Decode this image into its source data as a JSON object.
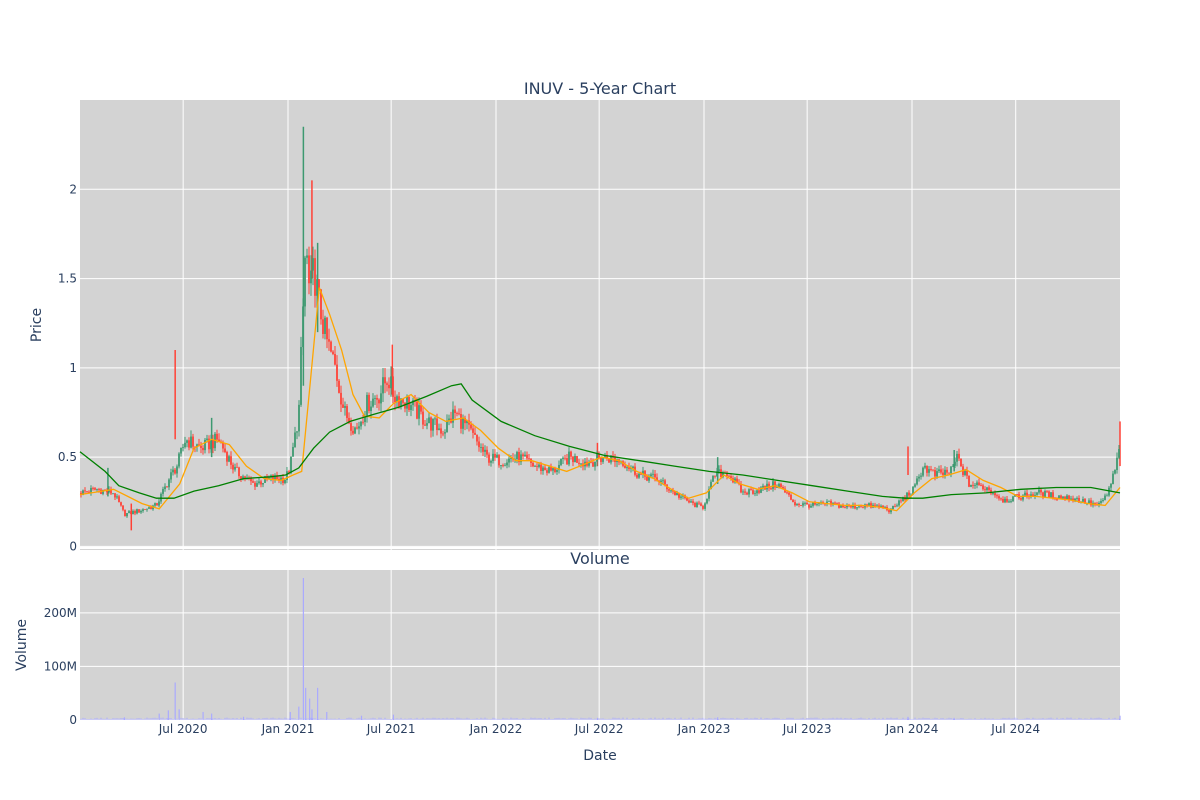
{
  "chart_data": [
    {
      "type": "candlestick",
      "title": "INUV - 5-Year Chart",
      "xlabel": "",
      "ylabel": "Price",
      "xlim": [
        "2020-01-02",
        "2024-12-31"
      ],
      "ylim": [
        -0.02,
        2.5
      ],
      "grid": true,
      "yticks": [
        0,
        0.5,
        1,
        1.5,
        2
      ],
      "ytick_labels": [
        "0",
        "0.5",
        "1",
        "1.5",
        "2"
      ],
      "xticks": [
        "2020-07-01",
        "2021-01-01",
        "2021-07-01",
        "2022-01-01",
        "2022-07-01",
        "2023-01-01",
        "2023-07-01",
        "2024-01-01",
        "2024-07-01"
      ],
      "increasing_color": "#3d9970",
      "decreasing_color": "#ff4136",
      "close_series": {
        "name": "",
        "x": [
          "2020-01-02",
          "2020-02-01",
          "2020-03-01",
          "2020-03-20",
          "2020-04-15",
          "2020-05-15",
          "2020-06-10",
          "2020-06-20",
          "2020-07-05",
          "2020-08-01",
          "2020-09-01",
          "2020-10-01",
          "2020-11-01",
          "2020-12-01",
          "2020-12-28",
          "2021-01-05",
          "2021-01-20",
          "2021-02-01",
          "2021-02-08",
          "2021-02-15",
          "2021-02-25",
          "2021-03-10",
          "2021-03-25",
          "2021-04-10",
          "2021-05-01",
          "2021-05-20",
          "2021-06-10",
          "2021-06-25",
          "2021-07-05",
          "2021-08-01",
          "2021-09-01",
          "2021-10-01",
          "2021-10-20",
          "2021-11-15",
          "2021-12-15",
          "2022-01-10",
          "2022-02-10",
          "2022-03-10",
          "2022-04-10",
          "2022-05-10",
          "2022-06-10",
          "2022-07-10",
          "2022-08-10",
          "2022-09-10",
          "2022-10-10",
          "2022-11-10",
          "2022-12-10",
          "2022-12-30",
          "2023-01-20",
          "2023-02-10",
          "2023-03-10",
          "2023-04-10",
          "2023-05-10",
          "2023-06-10",
          "2023-07-10",
          "2023-08-10",
          "2023-09-10",
          "2023-10-10",
          "2023-11-10",
          "2023-11-25",
          "2023-12-10",
          "2024-01-05",
          "2024-01-20",
          "2024-02-10",
          "2024-03-10",
          "2024-03-20",
          "2024-04-10",
          "2024-05-10",
          "2024-06-10",
          "2024-07-10",
          "2024-08-10",
          "2024-09-10",
          "2024-10-10",
          "2024-11-10",
          "2024-11-25",
          "2024-12-10",
          "2024-12-20",
          "2024-12-31"
        ],
        "values": [
          0.3,
          0.32,
          0.3,
          0.18,
          0.2,
          0.23,
          0.4,
          0.45,
          0.6,
          0.55,
          0.6,
          0.42,
          0.35,
          0.38,
          0.38,
          0.45,
          0.75,
          1.7,
          1.4,
          1.55,
          1.35,
          1.15,
          1.0,
          0.75,
          0.65,
          0.8,
          0.85,
          0.95,
          0.85,
          0.8,
          0.7,
          0.65,
          0.75,
          0.65,
          0.5,
          0.48,
          0.5,
          0.45,
          0.42,
          0.5,
          0.47,
          0.5,
          0.48,
          0.4,
          0.38,
          0.3,
          0.24,
          0.22,
          0.4,
          0.42,
          0.3,
          0.32,
          0.35,
          0.24,
          0.23,
          0.24,
          0.22,
          0.23,
          0.22,
          0.2,
          0.25,
          0.32,
          0.45,
          0.4,
          0.42,
          0.5,
          0.35,
          0.33,
          0.26,
          0.28,
          0.3,
          0.28,
          0.27,
          0.24,
          0.23,
          0.3,
          0.4,
          0.55
        ]
      },
      "spikes": [
        {
          "x": "2020-06-17",
          "high": 1.1,
          "low": 0.6
        },
        {
          "x": "2021-01-28",
          "high": 2.35,
          "low": 0.9
        },
        {
          "x": "2021-02-12",
          "high": 2.05,
          "low": 1.5
        },
        {
          "x": "2021-02-22",
          "high": 1.7,
          "low": 1.2
        },
        {
          "x": "2021-07-03",
          "high": 1.13,
          "low": 0.85
        },
        {
          "x": "2020-02-20",
          "high": 0.44,
          "low": 0.28
        },
        {
          "x": "2020-04-01",
          "high": 0.24,
          "low": 0.09
        },
        {
          "x": "2020-08-20",
          "high": 0.72,
          "low": 0.5
        },
        {
          "x": "2022-06-28",
          "high": 0.58,
          "low": 0.45
        },
        {
          "x": "2023-01-25",
          "high": 0.5,
          "low": 0.35
        },
        {
          "x": "2023-12-25",
          "high": 0.56,
          "low": 0.4
        },
        {
          "x": "2024-03-15",
          "high": 0.54,
          "low": 0.42
        },
        {
          "x": "2024-12-31",
          "high": 0.7,
          "low": 0.45
        }
      ],
      "series": [
        {
          "name": "",
          "color": "#ffa500",
          "x": [
            "2020-01-02",
            "2020-03-01",
            "2020-04-20",
            "2020-05-20",
            "2020-06-25",
            "2020-07-20",
            "2020-08-20",
            "2020-09-20",
            "2020-10-20",
            "2020-11-20",
            "2020-12-20",
            "2021-01-10",
            "2021-01-25",
            "2021-02-10",
            "2021-02-25",
            "2021-03-15",
            "2021-04-05",
            "2021-04-25",
            "2021-05-15",
            "2021-06-10",
            "2021-07-05",
            "2021-08-05",
            "2021-09-05",
            "2021-10-05",
            "2021-11-05",
            "2021-12-05",
            "2022-01-05",
            "2022-02-05",
            "2022-03-05",
            "2022-04-05",
            "2022-05-05",
            "2022-06-05",
            "2022-07-05",
            "2022-08-05",
            "2022-09-05",
            "2022-10-05",
            "2022-11-05",
            "2022-12-05",
            "2023-01-05",
            "2023-02-05",
            "2023-03-05",
            "2023-04-05",
            "2023-05-05",
            "2023-06-05",
            "2023-07-05",
            "2023-08-05",
            "2023-09-05",
            "2023-10-05",
            "2023-11-05",
            "2023-12-05",
            "2024-01-05",
            "2024-02-05",
            "2024-03-05",
            "2024-04-05",
            "2024-05-05",
            "2024-06-05",
            "2024-07-05",
            "2024-08-05",
            "2024-09-05",
            "2024-10-05",
            "2024-11-05",
            "2024-12-05",
            "2024-12-31"
          ],
          "values": [
            0.29,
            0.32,
            0.24,
            0.21,
            0.35,
            0.55,
            0.6,
            0.57,
            0.45,
            0.38,
            0.37,
            0.4,
            0.42,
            0.95,
            1.45,
            1.3,
            1.1,
            0.85,
            0.73,
            0.72,
            0.8,
            0.85,
            0.75,
            0.7,
            0.72,
            0.65,
            0.55,
            0.48,
            0.48,
            0.45,
            0.42,
            0.46,
            0.5,
            0.48,
            0.42,
            0.38,
            0.32,
            0.27,
            0.3,
            0.4,
            0.35,
            0.32,
            0.34,
            0.3,
            0.25,
            0.24,
            0.23,
            0.23,
            0.22,
            0.2,
            0.3,
            0.38,
            0.4,
            0.43,
            0.37,
            0.33,
            0.28,
            0.28,
            0.27,
            0.26,
            0.24,
            0.23,
            0.33
          ]
        },
        {
          "name": "",
          "color": "#008000",
          "x": [
            "2020-01-02",
            "2020-02-15",
            "2020-03-10",
            "2020-04-15",
            "2020-05-15",
            "2020-06-15",
            "2020-07-20",
            "2020-09-01",
            "2020-10-15",
            "2020-12-01",
            "2020-12-28",
            "2021-01-20",
            "2021-02-15",
            "2021-03-15",
            "2021-04-20",
            "2021-06-01",
            "2021-07-15",
            "2021-09-01",
            "2021-10-15",
            "2021-11-01",
            "2021-11-20",
            "2022-01-10",
            "2022-03-10",
            "2022-05-10",
            "2022-07-10",
            "2022-09-10",
            "2022-11-10",
            "2023-01-10",
            "2023-03-10",
            "2023-05-10",
            "2023-07-10",
            "2023-09-10",
            "2023-11-10",
            "2023-12-20",
            "2024-01-20",
            "2024-03-10",
            "2024-05-10",
            "2024-07-10",
            "2024-09-10",
            "2024-11-10",
            "2024-12-31"
          ],
          "values": [
            0.53,
            0.42,
            0.34,
            0.3,
            0.27,
            0.27,
            0.31,
            0.34,
            0.38,
            0.39,
            0.4,
            0.44,
            0.55,
            0.64,
            0.7,
            0.74,
            0.78,
            0.84,
            0.9,
            0.91,
            0.82,
            0.7,
            0.62,
            0.56,
            0.51,
            0.48,
            0.45,
            0.42,
            0.4,
            0.37,
            0.34,
            0.31,
            0.28,
            0.27,
            0.27,
            0.29,
            0.3,
            0.32,
            0.33,
            0.33,
            0.3
          ]
        }
      ]
    },
    {
      "type": "bar",
      "title": "Volume",
      "xlabel": "Date",
      "ylabel": "Volume",
      "xlim": [
        "2020-01-02",
        "2024-12-31"
      ],
      "ylim": [
        0,
        280000000
      ],
      "grid": true,
      "yticks": [
        0,
        100000000,
        200000000
      ],
      "ytick_labels": [
        "0",
        "100M",
        "200M"
      ],
      "xticks": [
        "2020-07-01",
        "2021-01-01",
        "2021-07-01",
        "2022-01-01",
        "2022-07-01",
        "2023-01-01",
        "2023-07-01",
        "2024-01-01",
        "2024-07-01"
      ],
      "xtick_labels": [
        "Jul 2020",
        "Jan 2021",
        "Jul 2021",
        "Jan 2022",
        "Jul 2022",
        "Jan 2023",
        "Jul 2023",
        "Jan 2024",
        "Jul 2024"
      ],
      "color": "#aaaaff",
      "x": [
        "2020-03-20",
        "2020-05-20",
        "2020-06-05",
        "2020-06-17",
        "2020-06-24",
        "2020-08-05",
        "2020-08-20",
        "2020-10-15",
        "2021-01-05",
        "2021-01-20",
        "2021-01-28",
        "2021-02-01",
        "2021-02-08",
        "2021-02-12",
        "2021-02-22",
        "2021-03-10",
        "2021-05-10",
        "2021-07-05",
        "2022-06-28",
        "2023-01-25",
        "2023-12-25",
        "2024-03-15",
        "2024-12-31"
      ],
      "values": [
        5000000,
        12000000,
        18000000,
        70000000,
        20000000,
        15000000,
        12000000,
        6000000,
        15000000,
        25000000,
        265000000,
        60000000,
        40000000,
        20000000,
        60000000,
        15000000,
        8000000,
        10000000,
        4000000,
        5000000,
        6000000,
        4000000,
        8000000
      ],
      "baseline": 3000000
    }
  ]
}
